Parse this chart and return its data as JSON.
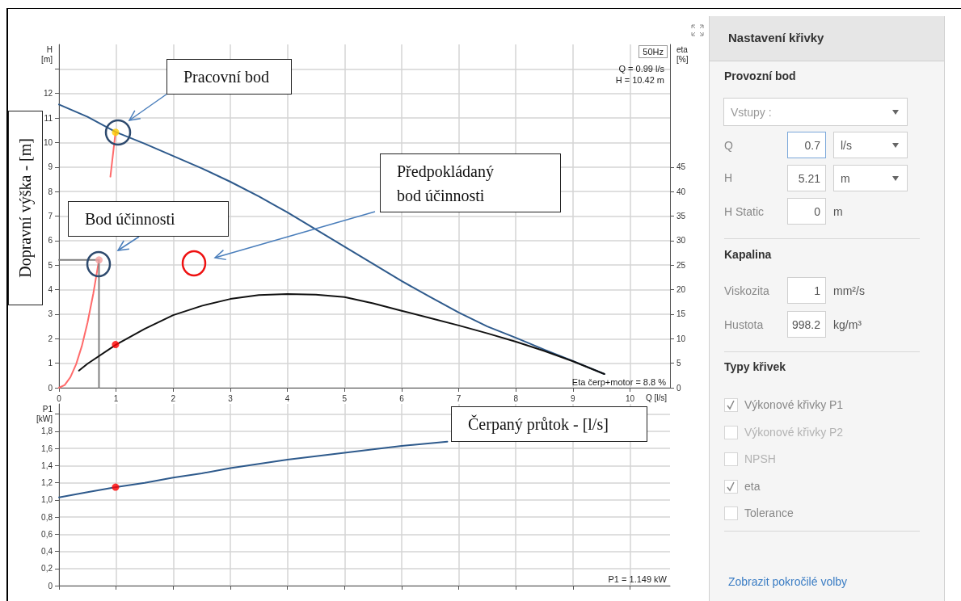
{
  "chart_data": [
    {
      "type": "line",
      "xlabel": "Q [l/s]",
      "ylabel": "H [m]",
      "y2label": "eta [%]",
      "xlim": [
        0,
        10.7
      ],
      "xticks": [
        0,
        1,
        2,
        3,
        4,
        5,
        6,
        7,
        8,
        9,
        10
      ],
      "ylim": [
        0,
        14
      ],
      "yticks": [
        0,
        1,
        2,
        3,
        4,
        5,
        6,
        7,
        8,
        9,
        10,
        11,
        12,
        {
          "value": 13,
          "label": null
        }
      ],
      "y2lim": [
        0,
        70
      ],
      "y2ticks": [
        0,
        5,
        10,
        15,
        20,
        25,
        30,
        35,
        40,
        45
      ],
      "grid": true,
      "marker": "none",
      "series": [
        {
          "type": "line",
          "color": "#2e5a8c",
          "x": [
            0,
            0.5,
            1,
            1.5,
            2,
            2.5,
            3,
            3.5,
            4,
            4.5,
            5,
            5.5,
            6,
            6.5,
            7,
            7.5,
            8,
            8.5,
            9,
            9.55
          ],
          "values": [
            11.55,
            11.05,
            10.42,
            9.95,
            9.45,
            8.95,
            8.4,
            7.8,
            7.15,
            6.45,
            5.75,
            5.05,
            4.35,
            3.7,
            3.07,
            2.5,
            2.04,
            1.55,
            1.09,
            0.56
          ]
        },
        {
          "type": "line",
          "color": "#ff6b6b",
          "x": [
            0,
            0.1,
            0.2,
            0.3,
            0.4,
            0.5,
            0.6,
            0.7,
            0.8,
            0.9,
            0.99
          ],
          "values": [
            0,
            0.11,
            0.43,
            0.96,
            1.7,
            2.66,
            3.83,
            5.21,
            null,
            8.61,
            10.42
          ]
        },
        {
          "type": "line",
          "color": "#808080",
          "x": [
            0,
            0.7,
            0.7
          ],
          "values": [
            5.21,
            5.21,
            0
          ]
        },
        {
          "type": "line",
          "color": "#111111",
          "axis": "y2",
          "x": [
            0.35,
            0.5,
            1,
            1.5,
            2,
            2.5,
            3,
            3.5,
            4,
            4.5,
            5,
            5.5,
            6,
            6.5,
            7,
            7.5,
            8,
            8.5,
            9,
            9.55
          ],
          "values": [
            3.5,
            4.9,
            8.8,
            12,
            14.8,
            16.7,
            18.1,
            18.9,
            19.1,
            19,
            18.5,
            17.2,
            15.7,
            14.2,
            12.7,
            11.1,
            9.4,
            7.5,
            5.4,
            2.8
          ]
        },
        {
          "type": "scatter",
          "marker": "circle",
          "color": "#ffcc00",
          "x": [
            0.99
          ],
          "values": [
            10.42
          ]
        },
        {
          "type": "scatter",
          "marker": "circle",
          "color": "#f4a0a0",
          "x": [
            0.7
          ],
          "values": [
            5.21
          ]
        },
        {
          "type": "scatter",
          "marker": "circle",
          "color": "#ff0000",
          "axis": "y2",
          "x": [
            0.99
          ],
          "values": [
            8.8
          ]
        }
      ],
      "annotations": [
        "50Hz",
        "Q = 0.99 l/s",
        "H = 10.42 m",
        "Eta čerp+motor = 8.8 %",
        "Pracovní bod",
        "Bod účinnosti",
        "Předpokládaný bod účinnosti",
        "Dopravní výška - [m]"
      ]
    },
    {
      "type": "line",
      "ylabel": "P1 [kW]",
      "xlim": [
        0,
        10.7
      ],
      "xticks": [
        0,
        1,
        2,
        3,
        4,
        5,
        6,
        7,
        8,
        9,
        10
      ],
      "ylim": [
        0,
        2.12
      ],
      "yticks": [
        0,
        {
          "value": 0.2,
          "label": "0,2"
        },
        {
          "value": 0.4,
          "label": "0,4"
        },
        {
          "value": 0.6,
          "label": "0,6"
        },
        {
          "value": 0.8,
          "label": "0,8"
        },
        {
          "value": 1,
          "label": "1,0"
        },
        {
          "value": 1.2,
          "label": "1,2"
        },
        {
          "value": 1.4,
          "label": "1,4"
        },
        {
          "value": 1.6,
          "label": "1,6"
        },
        {
          "value": 1.8,
          "label": "1,8"
        },
        {
          "value": 2,
          "label": null
        }
      ],
      "grid": true,
      "marker": "none",
      "tick_labels": "y",
      "series": [
        {
          "type": "line",
          "color": "#2e5a8c",
          "x": [
            0,
            0.5,
            1,
            1.5,
            2,
            2.5,
            3,
            3.5,
            4,
            4.5,
            5,
            5.5,
            6,
            6.5,
            6.8
          ],
          "values": [
            1.03,
            1.09,
            1.15,
            1.2,
            1.26,
            1.31,
            1.37,
            1.42,
            1.47,
            1.51,
            1.55,
            1.59,
            1.63,
            1.66,
            1.68
          ]
        },
        {
          "type": "scatter",
          "marker": "circle",
          "color": "#ff0000",
          "x": [
            0.99
          ],
          "values": [
            1.149
          ]
        }
      ],
      "annotations": [
        "P1 = 1.149 kW",
        "Čerpaný průtok - [l/s]"
      ]
    },
    {
      "type": "other",
      "title": "Nastavení křivky",
      "annotations": [
        "Provozní bod",
        "Vstupy :",
        "Q",
        "0.7",
        "l/s",
        "H",
        "5.21",
        "m",
        "H Static",
        "0",
        "m",
        "Kapalina",
        "Viskozita",
        "1",
        "mm²/s",
        "Hustota",
        "998.2",
        "kg/m³",
        "Typy křivek",
        "Výkonové křivky P1",
        "Výkonové křivky P2",
        "NPSH",
        "eta",
        "Tolerance",
        "Zobrazit pokročilé volby"
      ]
    }
  ]
}
